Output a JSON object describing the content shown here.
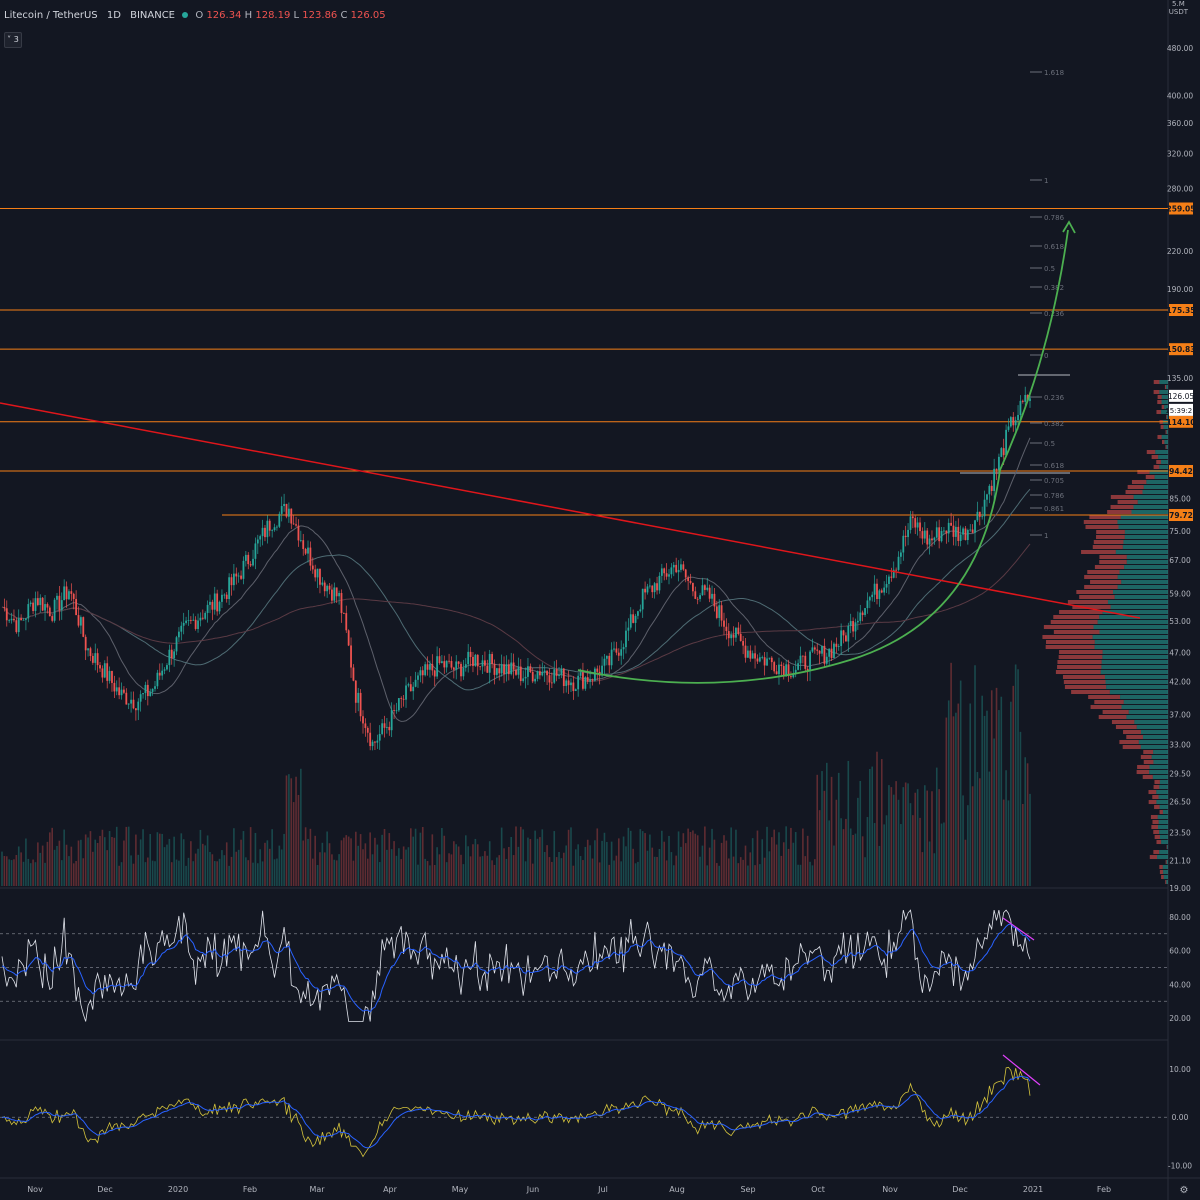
{
  "header": {
    "symbol": "Litecoin / TetherUS",
    "interval": "1D",
    "exchange": "BINANCE",
    "ohlc": {
      "o_label": "O",
      "o": "126.34",
      "h_label": "H",
      "h": "128.19",
      "l_label": "L",
      "l": "123.86",
      "c_label": "C",
      "c": "126.05"
    },
    "indicator_toggle": "3"
  },
  "colors": {
    "background": "#131722",
    "up": "#26a69a",
    "down": "#ef5350",
    "hline": "#f57f17",
    "trendline": "#e0161b",
    "curve": "#4caf50",
    "fib": "#6b6f7a",
    "rsi": "#e0e3eb",
    "rsi_ma": "#2962ff",
    "divergence": "#e040fb",
    "volume_profile_up": "#26a69a",
    "volume_profile_down": "#ef5350"
  },
  "price_axis": {
    "currency_top": "5.M",
    "currency": "USDT",
    "ticks": [
      "480.00",
      "400.00",
      "360.00",
      "320.00",
      "280.00",
      "220.00",
      "190.00",
      "135.00",
      "85.00",
      "75.00",
      "67.00",
      "59.00",
      "53.00",
      "47.00",
      "42.00",
      "37.00",
      "33.00",
      "29.50",
      "26.50",
      "23.50",
      "21.10",
      "19.00"
    ],
    "current_price": "126.05",
    "countdown": "15:39:21",
    "level_labels": [
      "259.05",
      "175.35",
      "150.83",
      "114.10",
      "94.42",
      "79.72"
    ]
  },
  "fib_labels": [
    "1.618",
    "1",
    "0.786",
    "0.618",
    "0.5",
    "0.382",
    "0.236",
    "0",
    "0.236",
    "0.382",
    "0.5",
    "0.618",
    "0.705",
    "0.786",
    "0.861",
    "1"
  ],
  "time_axis": [
    "Nov",
    "Dec",
    "2020",
    "Feb",
    "Mar",
    "Apr",
    "May",
    "Jun",
    "Jul",
    "Aug",
    "Sep",
    "Oct",
    "Nov",
    "Dec",
    "2021",
    "Feb"
  ],
  "rsi_axis": [
    "80.00",
    "60.00",
    "40.00",
    "20.00"
  ],
  "osc_axis": [
    "10.00",
    "0.00",
    "-10.00"
  ],
  "chart_data": {
    "type": "candlestick",
    "title": "Litecoin / TetherUS 1D BINANCE",
    "scale": "log",
    "ylim": [
      19,
      500
    ],
    "x": [
      "Nov",
      "Dec",
      "2020",
      "Feb",
      "Mar",
      "Apr",
      "May",
      "Jun",
      "Jul",
      "Aug",
      "Sep",
      "Oct",
      "Nov",
      "Dec",
      "2021",
      "Feb"
    ],
    "close_path": [
      56,
      52,
      58,
      55,
      60,
      48,
      44,
      40,
      39,
      41,
      47,
      52,
      55,
      58,
      63,
      70,
      78,
      82,
      70,
      62,
      58,
      40,
      33,
      36,
      40,
      43,
      45,
      44,
      46,
      45,
      44,
      43,
      44,
      43,
      42,
      43,
      45,
      50,
      58,
      62,
      66,
      60,
      58,
      52,
      48,
      46,
      45,
      44,
      46,
      47,
      50,
      56,
      60,
      66,
      78,
      72,
      76,
      74,
      80,
      95,
      115,
      126
    ],
    "horizontal_levels": [
      259.05,
      175.35,
      150.83,
      114.1,
      94.42,
      79.72
    ],
    "rsi": {
      "levels": [
        70,
        50,
        30
      ],
      "range": [
        10,
        90
      ]
    },
    "oscillator": {
      "zero": 0,
      "range": [
        -12,
        15
      ]
    }
  }
}
